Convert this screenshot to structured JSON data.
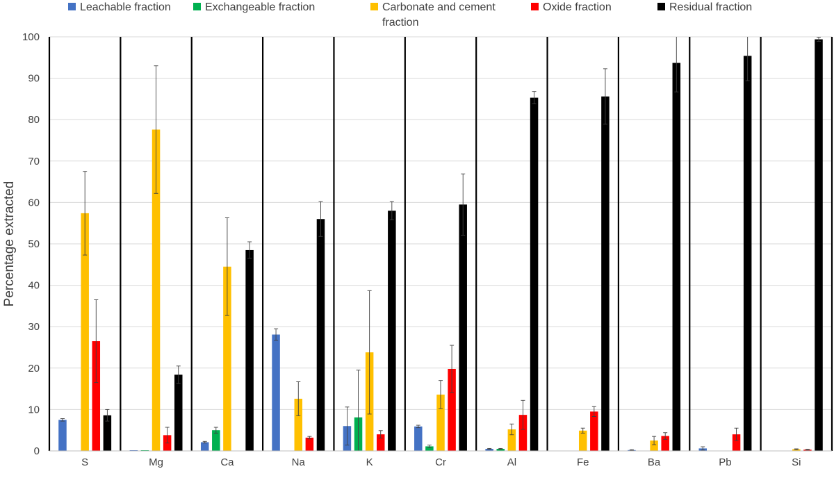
{
  "chart_data": {
    "type": "bar",
    "ylabel": "Percentage extracted",
    "xlabel": "",
    "ylim": [
      0,
      100
    ],
    "yticks": [
      0,
      10,
      20,
      30,
      40,
      50,
      60,
      70,
      80,
      90,
      100
    ],
    "grid": true,
    "legend_position": "top",
    "categories": [
      "S",
      "Mg",
      "Ca",
      "Na",
      "K",
      "Cr",
      "Al",
      "Fe",
      "Ba",
      "Pb",
      "Si"
    ],
    "series": [
      {
        "name": "Leachable fraction",
        "color": "#4472C4",
        "values": [
          7.5,
          0.1,
          2.1,
          28.1,
          6.0,
          5.9,
          0.5,
          0.0,
          0.2,
          0.6,
          0.0
        ],
        "errors": [
          0.3,
          0.0,
          0.2,
          1.4,
          4.6,
          0.3,
          0.1,
          0.0,
          0.1,
          0.4,
          0.0
        ]
      },
      {
        "name": "Exchangeable fraction",
        "color": "#00B050",
        "values": [
          0.0,
          0.1,
          5.0,
          0.0,
          8.1,
          1.1,
          0.5,
          0.0,
          0.0,
          0.0,
          0.0
        ],
        "errors": [
          0.0,
          0.0,
          0.7,
          0.0,
          11.4,
          0.3,
          0.1,
          0.0,
          0.0,
          0.0,
          0.0
        ]
      },
      {
        "name": "Carbonate and cement fraction",
        "color": "#FFC000",
        "values": [
          57.4,
          77.6,
          44.5,
          12.6,
          23.8,
          13.6,
          5.2,
          4.9,
          2.5,
          0.0,
          0.4
        ],
        "errors": [
          10.1,
          15.4,
          11.8,
          4.1,
          14.9,
          3.4,
          1.3,
          0.6,
          1.0,
          0.0,
          0.1
        ]
      },
      {
        "name": "Oxide fraction",
        "color": "#FF0000",
        "values": [
          26.5,
          3.8,
          0.0,
          3.2,
          4.0,
          19.8,
          8.7,
          9.5,
          3.6,
          4.0,
          0.3
        ],
        "errors": [
          10.0,
          1.9,
          0.0,
          0.3,
          0.9,
          5.7,
          3.5,
          1.2,
          0.8,
          1.5,
          0.1
        ]
      },
      {
        "name": "Residual fraction",
        "color": "#000000",
        "values": [
          8.6,
          18.4,
          48.5,
          56.0,
          58.0,
          59.5,
          85.3,
          85.6,
          93.7,
          95.4,
          99.4
        ],
        "errors": [
          1.4,
          2.1,
          2.0,
          4.2,
          2.2,
          7.4,
          1.5,
          6.7,
          7.0,
          6.0,
          0.5
        ]
      }
    ]
  }
}
